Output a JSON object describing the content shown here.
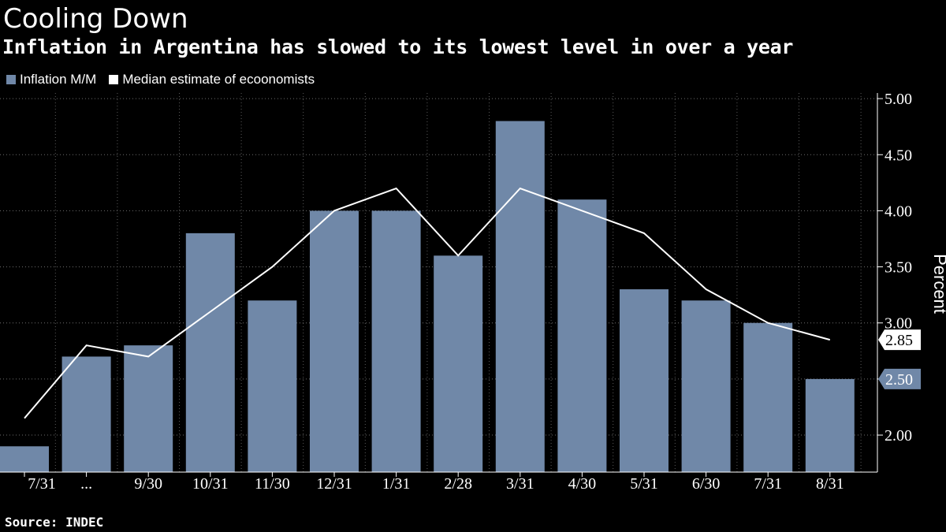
{
  "header": {
    "title": "Cooling Down",
    "subtitle": "Inflation in Argentina has slowed to its lowest level in over a year"
  },
  "legend": {
    "items": [
      {
        "label": "Inflation M/M",
        "color": "#7088a8"
      },
      {
        "label": "Median estimate of ecoonomists",
        "color": "#ffffff"
      }
    ]
  },
  "footer": {
    "source": "Source: INDEC"
  },
  "chart_data": {
    "type": "bar",
    "title": "Cooling Down",
    "subtitle": "Inflation in Argentina has slowed to its lowest level in over a year",
    "ylabel": "Percent",
    "xlabel": "",
    "categories": [
      "7/31",
      "...",
      "9/30",
      "10/31",
      "11/30",
      "12/31",
      "1/31",
      "2/28",
      "3/31",
      "4/30",
      "5/31",
      "6/30",
      "7/31",
      "8/31"
    ],
    "series": [
      {
        "name": "Inflation M/M",
        "type": "bar",
        "color": "#7088a8",
        "values": [
          1.9,
          2.7,
          2.8,
          3.8,
          3.2,
          4.0,
          4.0,
          3.6,
          4.8,
          4.1,
          3.3,
          3.2,
          3.0,
          2.5
        ]
      },
      {
        "name": "Median estimate of ecoonomists",
        "type": "line",
        "color": "#ffffff",
        "values": [
          2.15,
          2.8,
          2.7,
          3.1,
          3.5,
          4.0,
          4.2,
          3.6,
          4.2,
          4.0,
          3.8,
          3.3,
          3.0,
          2.85
        ]
      }
    ],
    "yticks": [
      "2.00",
      "2.50",
      "3.00",
      "3.50",
      "4.00",
      "4.50",
      "5.00"
    ],
    "ylim": [
      1.67,
      5.05
    ],
    "y_axis_position": "right",
    "grid": "horizontal dotted",
    "legend_position": "top-left",
    "end_labels": [
      {
        "text": "2.85",
        "value": 2.85,
        "style": "light"
      },
      {
        "text": "2.50",
        "value": 2.5,
        "style": "bar"
      }
    ]
  }
}
